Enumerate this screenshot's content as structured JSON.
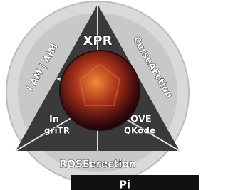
{
  "logo": {
    "center_title": "XPR",
    "right_label": "CurseAFction",
    "left_label": "I AM | AIM",
    "inner_left_top": "In",
    "inner_left_bottom": "griTR",
    "inner_right_top": "OVE",
    "inner_right_bottom": "QKode",
    "bottom_label": "ROSEerection"
  },
  "banner": {
    "text": "Pi"
  }
}
